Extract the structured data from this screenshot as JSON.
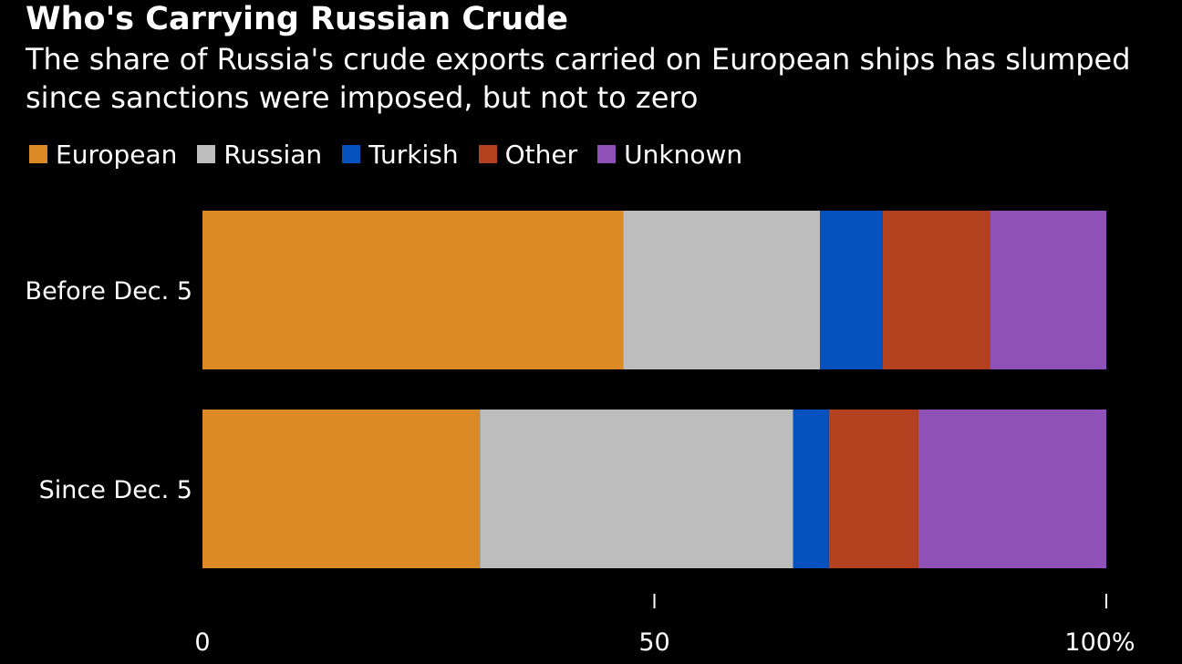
{
  "chart_data": {
    "type": "bar",
    "orientation": "horizontal",
    "stacked": true,
    "title": "Who's Carrying Russian Crude",
    "subtitle": "The share of Russia's crude exports carried on European ships has slumped since sanctions were imposed, but not to zero",
    "categories": [
      "Before Dec. 5",
      "Since Dec. 5"
    ],
    "series": [
      {
        "name": "European",
        "color": "#db8a26",
        "values": [
          47,
          31
        ]
      },
      {
        "name": "Russian",
        "color": "#bdbdbd",
        "values": [
          22,
          35
        ]
      },
      {
        "name": "Turkish",
        "color": "#0552bf",
        "values": [
          7,
          4
        ]
      },
      {
        "name": "Other",
        "color": "#b3401f",
        "values": [
          12,
          10
        ]
      },
      {
        "name": "Unknown",
        "color": "#8f51b8",
        "values": [
          13,
          21
        ]
      }
    ],
    "xlim": [
      0,
      100
    ],
    "xticks": [
      {
        "value": 0,
        "label": "0"
      },
      {
        "value": 50,
        "label": "50"
      },
      {
        "value": 100,
        "label": "100%"
      }
    ],
    "legend_position": "top-left",
    "grid": false,
    "xlabel": "",
    "ylabel": ""
  }
}
